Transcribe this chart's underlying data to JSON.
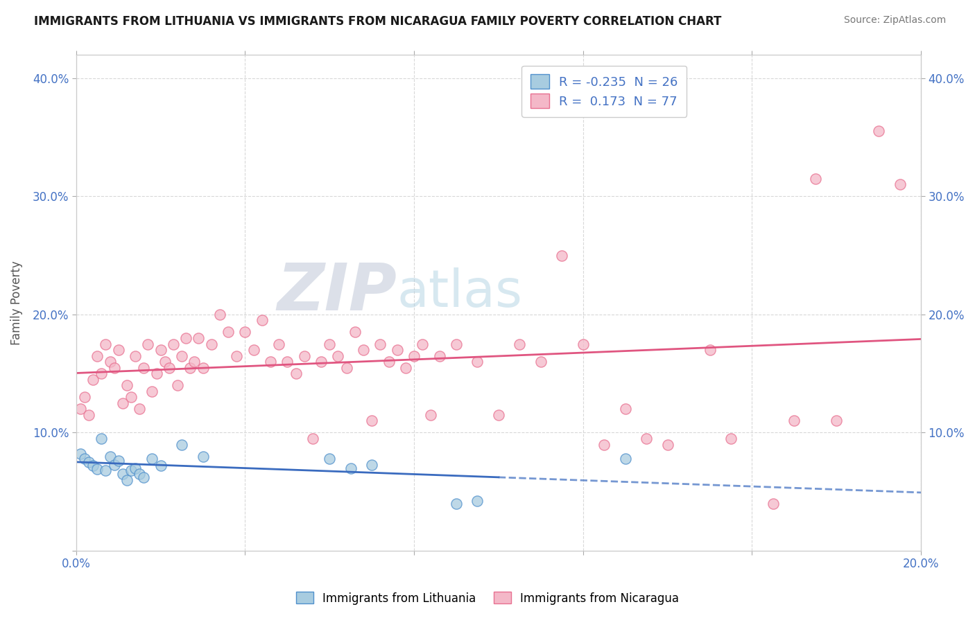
{
  "title": "IMMIGRANTS FROM LITHUANIA VS IMMIGRANTS FROM NICARAGUA FAMILY POVERTY CORRELATION CHART",
  "source": "Source: ZipAtlas.com",
  "xlabel": "",
  "ylabel": "Family Poverty",
  "xlim": [
    0.0,
    0.2
  ],
  "ylim": [
    0.0,
    0.42
  ],
  "xtick_labels": [
    "0.0%",
    "",
    "",
    "",
    "",
    "20.0%"
  ],
  "ytick_labels": [
    "",
    "10.0%",
    "20.0%",
    "30.0%",
    "40.0%"
  ],
  "lithuania_color": "#a8cce0",
  "nicaragua_color": "#f4b8c8",
  "lithuania_line_color": "#3a6bbf",
  "nicaragua_line_color": "#e05580",
  "lithuania_R": -0.235,
  "lithuania_N": 26,
  "nicaragua_R": 0.173,
  "nicaragua_N": 77,
  "watermark_zip": "ZIP",
  "watermark_atlas": "atlas",
  "legend_label_1": "Immigrants from Lithuania",
  "legend_label_2": "Immigrants from Nicaragua",
  "lithuania_scatter": [
    [
      0.001,
      0.082
    ],
    [
      0.002,
      0.078
    ],
    [
      0.003,
      0.075
    ],
    [
      0.004,
      0.072
    ],
    [
      0.005,
      0.069
    ],
    [
      0.006,
      0.095
    ],
    [
      0.007,
      0.068
    ],
    [
      0.008,
      0.08
    ],
    [
      0.009,
      0.073
    ],
    [
      0.01,
      0.076
    ],
    [
      0.011,
      0.065
    ],
    [
      0.012,
      0.06
    ],
    [
      0.013,
      0.068
    ],
    [
      0.014,
      0.07
    ],
    [
      0.015,
      0.065
    ],
    [
      0.016,
      0.062
    ],
    [
      0.018,
      0.078
    ],
    [
      0.02,
      0.072
    ],
    [
      0.025,
      0.09
    ],
    [
      0.03,
      0.08
    ],
    [
      0.06,
      0.078
    ],
    [
      0.065,
      0.07
    ],
    [
      0.07,
      0.073
    ],
    [
      0.09,
      0.04
    ],
    [
      0.095,
      0.042
    ],
    [
      0.13,
      0.078
    ]
  ],
  "nicaragua_scatter": [
    [
      0.001,
      0.12
    ],
    [
      0.002,
      0.13
    ],
    [
      0.003,
      0.115
    ],
    [
      0.004,
      0.145
    ],
    [
      0.005,
      0.165
    ],
    [
      0.006,
      0.15
    ],
    [
      0.007,
      0.175
    ],
    [
      0.008,
      0.16
    ],
    [
      0.009,
      0.155
    ],
    [
      0.01,
      0.17
    ],
    [
      0.011,
      0.125
    ],
    [
      0.012,
      0.14
    ],
    [
      0.013,
      0.13
    ],
    [
      0.014,
      0.165
    ],
    [
      0.015,
      0.12
    ],
    [
      0.016,
      0.155
    ],
    [
      0.017,
      0.175
    ],
    [
      0.018,
      0.135
    ],
    [
      0.019,
      0.15
    ],
    [
      0.02,
      0.17
    ],
    [
      0.021,
      0.16
    ],
    [
      0.022,
      0.155
    ],
    [
      0.023,
      0.175
    ],
    [
      0.024,
      0.14
    ],
    [
      0.025,
      0.165
    ],
    [
      0.026,
      0.18
    ],
    [
      0.027,
      0.155
    ],
    [
      0.028,
      0.16
    ],
    [
      0.029,
      0.18
    ],
    [
      0.03,
      0.155
    ],
    [
      0.032,
      0.175
    ],
    [
      0.034,
      0.2
    ],
    [
      0.036,
      0.185
    ],
    [
      0.038,
      0.165
    ],
    [
      0.04,
      0.185
    ],
    [
      0.042,
      0.17
    ],
    [
      0.044,
      0.195
    ],
    [
      0.046,
      0.16
    ],
    [
      0.048,
      0.175
    ],
    [
      0.05,
      0.16
    ],
    [
      0.052,
      0.15
    ],
    [
      0.054,
      0.165
    ],
    [
      0.056,
      0.095
    ],
    [
      0.058,
      0.16
    ],
    [
      0.06,
      0.175
    ],
    [
      0.062,
      0.165
    ],
    [
      0.064,
      0.155
    ],
    [
      0.066,
      0.185
    ],
    [
      0.068,
      0.17
    ],
    [
      0.07,
      0.11
    ],
    [
      0.072,
      0.175
    ],
    [
      0.074,
      0.16
    ],
    [
      0.076,
      0.17
    ],
    [
      0.078,
      0.155
    ],
    [
      0.08,
      0.165
    ],
    [
      0.082,
      0.175
    ],
    [
      0.084,
      0.115
    ],
    [
      0.086,
      0.165
    ],
    [
      0.09,
      0.175
    ],
    [
      0.095,
      0.16
    ],
    [
      0.1,
      0.115
    ],
    [
      0.105,
      0.175
    ],
    [
      0.11,
      0.16
    ],
    [
      0.115,
      0.25
    ],
    [
      0.12,
      0.175
    ],
    [
      0.125,
      0.09
    ],
    [
      0.13,
      0.12
    ],
    [
      0.135,
      0.095
    ],
    [
      0.14,
      0.09
    ],
    [
      0.15,
      0.17
    ],
    [
      0.155,
      0.095
    ],
    [
      0.165,
      0.04
    ],
    [
      0.17,
      0.11
    ],
    [
      0.175,
      0.315
    ],
    [
      0.18,
      0.11
    ],
    [
      0.19,
      0.355
    ],
    [
      0.195,
      0.31
    ]
  ],
  "background_color": "#ffffff",
  "grid_color": "#d8d8d8"
}
